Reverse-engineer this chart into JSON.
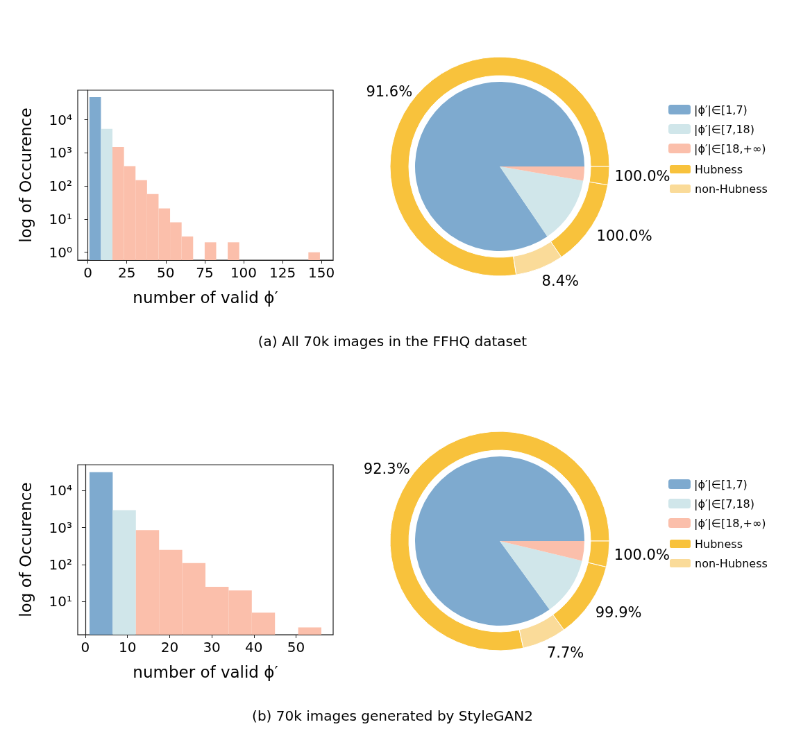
{
  "chart_data": [
    {
      "type": "histogram",
      "xlabel": "number of valid ϕ′",
      "ylabel": "log of Occurence",
      "log": "y",
      "bins": [
        1,
        8.4,
        15.8,
        23.2,
        30.6,
        38,
        45.4,
        52.8,
        60.2,
        67.6,
        75,
        82.4,
        89.8,
        97.2,
        104.6,
        112,
        119.4,
        126.8,
        134.2,
        141.6,
        149
      ],
      "values": [
        48000,
        5300,
        1500,
        400,
        150,
        57,
        21,
        8,
        3,
        null,
        2,
        null,
        2,
        null,
        null,
        null,
        null,
        null,
        null,
        1
      ],
      "colors": [
        "#7eaacf",
        "#d0e6ea",
        "#fbbfab",
        "#fbbfab",
        "#fbbfab",
        "#fbbfab",
        "#fbbfab",
        "#fbbfab",
        "#fbbfab",
        "#fbbfab",
        "#fbbfab",
        "#fbbfab",
        "#fbbfab",
        "#fbbfab",
        "#fbbfab",
        "#fbbfab",
        "#fbbfab",
        "#fbbfab",
        "#fbbfab",
        "#fbbfab"
      ],
      "xlim": [
        -6.5,
        157.5
      ],
      "xticks": [
        0,
        25,
        50,
        75,
        100,
        125,
        150
      ],
      "ylim": [
        0.58,
        78000
      ],
      "yticks": [
        {
          "value": 1,
          "label": "10⁰"
        },
        {
          "value": 10,
          "label": "10¹"
        },
        {
          "value": 100,
          "label": "10²"
        },
        {
          "value": 1000,
          "label": "10³"
        },
        {
          "value": 10000,
          "label": "10⁴"
        }
      ],
      "annotations": [
        "(a) All 70k images in the FFHQ dataset"
      ]
    },
    {
      "type": "pie",
      "legend": "right",
      "categories": [
        "|ϕ′|∈[1,7)",
        "|ϕ′|∈[7,18)",
        "|ϕ′|∈[18,+∞)"
      ],
      "values": [
        84.5,
        12.8,
        2.7
      ],
      "colors": [
        "#7eaacf",
        "#d0e6ea",
        "#fbbfab"
      ]
    },
    {
      "type": "donut",
      "legend": "right",
      "categories": [
        "Hubness",
        "non-Hubness",
        null,
        null
      ],
      "values": [
        77.4,
        7.1,
        12.8,
        2.7
      ],
      "colors": [
        "#f8c23c",
        "#fadb99",
        "#f8c23c",
        "#f8c23c"
      ],
      "annotations": [
        "91.6%",
        "8.4%",
        "100.0%",
        "100.0%"
      ]
    },
    {
      "type": "histogram",
      "xlabel": "number of valid ϕ′",
      "ylabel": "log of Occurence",
      "log": "y",
      "bins": [
        1,
        6.5,
        12,
        17.5,
        23,
        28.5,
        34,
        39.5,
        45,
        50.5,
        56
      ],
      "values": [
        31500,
        2950,
        850,
        250,
        110,
        25,
        20,
        5,
        null,
        2
      ],
      "colors": [
        "#7eaacf",
        "#d0e6ea",
        "#fbbfab",
        "#fbbfab",
        "#fbbfab",
        "#fbbfab",
        "#fbbfab",
        "#fbbfab",
        "#fbbfab",
        "#fbbfab"
      ],
      "xlim": [
        -1.8,
        58.8
      ],
      "xticks": [
        0,
        10,
        20,
        30,
        40,
        50
      ],
      "ylim": [
        1.27,
        50000
      ],
      "yticks": [
        {
          "value": 10,
          "label": "10¹"
        },
        {
          "value": 100,
          "label": "10²"
        },
        {
          "value": 1000,
          "label": "10³"
        },
        {
          "value": 10000,
          "label": "10⁴"
        }
      ],
      "annotations": [
        "(b) 70k images generated by StyleGAN2"
      ]
    },
    {
      "type": "pie",
      "legend": "right",
      "categories": [
        "|ϕ′|∈[1,7)",
        "|ϕ′|∈[7,18)",
        "|ϕ′|∈[18,+∞)"
      ],
      "values": [
        85.0,
        11.25,
        3.75
      ],
      "colors": [
        "#7eaacf",
        "#d0e6ea",
        "#fbbfab"
      ]
    },
    {
      "type": "donut",
      "legend": "right",
      "categories": [
        "Hubness",
        "non-Hubness",
        null,
        null,
        null
      ],
      "values": [
        78.45,
        6.5,
        11.24,
        null,
        3.8
      ],
      "colors": [
        "#f8c23c",
        "#fadb99",
        "#f8c23c",
        "#fadb99",
        "#f8c23c"
      ],
      "annotations": [
        "92.3%",
        "7.7%",
        "99.9%",
        "100.0%"
      ]
    }
  ]
}
